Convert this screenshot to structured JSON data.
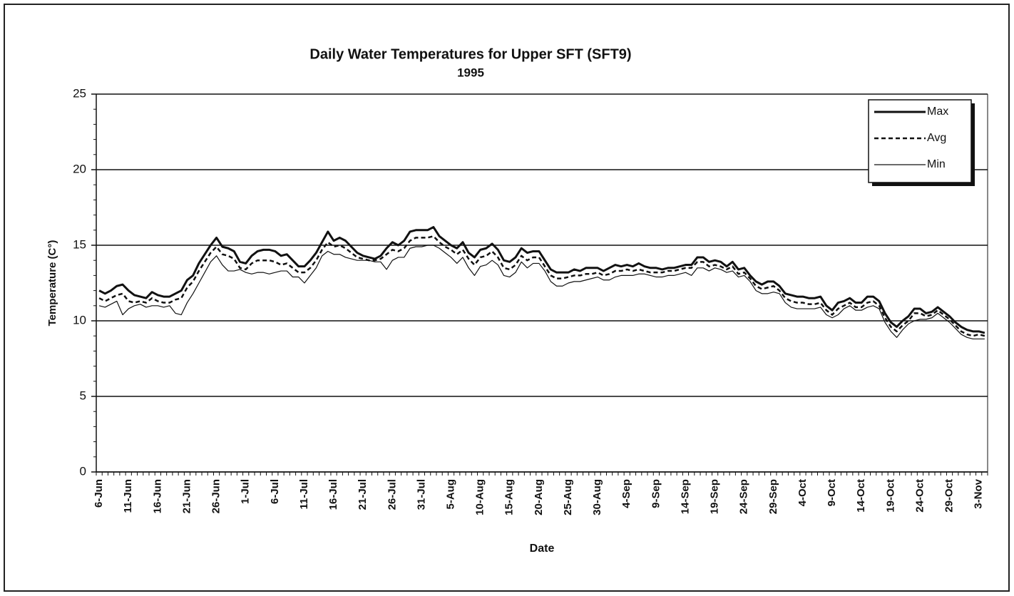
{
  "chart_data": {
    "type": "line",
    "title": "Daily Water Temperatures for Upper SFT (SFT9)",
    "subtitle": "1995",
    "x_label": "Date",
    "y_label": "Temperature (C°)",
    "ylim": [
      0,
      25
    ],
    "yticks": [
      0,
      5,
      10,
      15,
      20,
      25
    ],
    "grid": true,
    "legend": "top-right",
    "categories": [
      "6-Jun",
      null,
      null,
      null,
      null,
      "11-Jun",
      null,
      null,
      null,
      null,
      "16-Jun",
      null,
      null,
      null,
      null,
      "21-Jun",
      null,
      null,
      null,
      null,
      "26-Jun",
      null,
      null,
      null,
      null,
      "1-Jul",
      null,
      null,
      null,
      null,
      "6-Jul",
      null,
      null,
      null,
      null,
      "11-Jul",
      null,
      null,
      null,
      null,
      "16-Jul",
      null,
      null,
      null,
      null,
      "21-Jul",
      null,
      null,
      null,
      null,
      "26-Jul",
      null,
      null,
      null,
      null,
      "31-Jul",
      null,
      null,
      null,
      null,
      "5-Aug",
      null,
      null,
      null,
      null,
      "10-Aug",
      null,
      null,
      null,
      null,
      "15-Aug",
      null,
      null,
      null,
      null,
      "20-Aug",
      null,
      null,
      null,
      null,
      "25-Aug",
      null,
      null,
      null,
      null,
      "30-Aug",
      null,
      null,
      null,
      null,
      "4-Sep",
      null,
      null,
      null,
      null,
      "9-Sep",
      null,
      null,
      null,
      null,
      "14-Sep",
      null,
      null,
      null,
      null,
      "19-Sep",
      null,
      null,
      null,
      null,
      "24-Sep",
      null,
      null,
      null,
      null,
      "29-Sep",
      null,
      null,
      null,
      null,
      "4-Oct",
      null,
      null,
      null,
      null,
      "9-Oct",
      null,
      null,
      null,
      null,
      "14-Oct",
      null,
      null,
      null,
      null,
      "19-Oct",
      null,
      null,
      null,
      null,
      "24-Oct",
      null,
      null,
      null,
      null,
      "29-Oct",
      null,
      null,
      null,
      null,
      "3-Nov",
      null
    ],
    "series": [
      {
        "name": "Max",
        "color": "#111111",
        "width": 3,
        "dash": "none",
        "values": [
          12.0,
          11.8,
          12.0,
          12.3,
          12.4,
          12.0,
          11.7,
          11.6,
          11.5,
          11.9,
          11.7,
          11.6,
          11.6,
          11.8,
          12.0,
          12.7,
          13.0,
          13.8,
          14.4,
          15.0,
          15.5,
          14.9,
          14.8,
          14.6,
          13.9,
          13.8,
          14.3,
          14.6,
          14.7,
          14.7,
          14.6,
          14.3,
          14.4,
          14.0,
          13.6,
          13.6,
          14.0,
          14.5,
          15.2,
          15.9,
          15.3,
          15.5,
          15.3,
          14.9,
          14.5,
          14.3,
          14.2,
          14.1,
          14.3,
          14.8,
          15.2,
          15.0,
          15.3,
          15.9,
          16.0,
          16.0,
          16.0,
          16.2,
          15.6,
          15.3,
          15.0,
          14.8,
          15.2,
          14.5,
          14.2,
          14.7,
          14.8,
          15.1,
          14.7,
          14.0,
          13.9,
          14.2,
          14.8,
          14.5,
          14.6,
          14.6,
          14.0,
          13.4,
          13.2,
          13.2,
          13.2,
          13.4,
          13.3,
          13.5,
          13.5,
          13.5,
          13.3,
          13.5,
          13.7,
          13.6,
          13.7,
          13.6,
          13.8,
          13.6,
          13.5,
          13.5,
          13.4,
          13.5,
          13.5,
          13.6,
          13.7,
          13.7,
          14.2,
          14.2,
          13.9,
          14.0,
          13.9,
          13.6,
          13.9,
          13.4,
          13.5,
          13.0,
          12.6,
          12.4,
          12.6,
          12.6,
          12.3,
          11.8,
          11.7,
          11.6,
          11.6,
          11.5,
          11.5,
          11.6,
          11.0,
          10.7,
          11.2,
          11.3,
          11.5,
          11.2,
          11.2,
          11.6,
          11.6,
          11.3,
          10.5,
          9.9,
          9.6,
          10.0,
          10.3,
          10.8,
          10.8,
          10.5,
          10.6,
          10.9,
          10.6,
          10.3,
          9.9,
          9.6,
          9.4,
          9.3,
          9.3,
          9.2
        ]
      },
      {
        "name": "Avg",
        "color": "#111111",
        "width": 2.5,
        "dash": "6 4",
        "values": [
          11.5,
          11.3,
          11.5,
          11.7,
          11.8,
          11.3,
          11.2,
          11.3,
          11.2,
          11.5,
          11.3,
          11.2,
          11.2,
          11.4,
          11.5,
          12.2,
          12.6,
          13.3,
          13.9,
          14.5,
          14.9,
          14.4,
          14.3,
          14.1,
          13.5,
          13.4,
          13.8,
          14.0,
          14.0,
          14.0,
          13.9,
          13.7,
          13.8,
          13.5,
          13.2,
          13.2,
          13.5,
          14.0,
          14.7,
          15.2,
          14.9,
          15.0,
          14.8,
          14.5,
          14.2,
          14.1,
          14.0,
          14.0,
          14.1,
          14.4,
          14.7,
          14.6,
          14.8,
          15.3,
          15.5,
          15.5,
          15.5,
          15.6,
          15.2,
          14.9,
          14.7,
          14.4,
          14.7,
          14.1,
          13.7,
          14.2,
          14.3,
          14.6,
          14.2,
          13.5,
          13.4,
          13.7,
          14.3,
          14.0,
          14.2,
          14.2,
          13.6,
          13.0,
          12.8,
          12.8,
          12.9,
          13.0,
          13.0,
          13.1,
          13.1,
          13.2,
          13.0,
          13.1,
          13.3,
          13.3,
          13.4,
          13.3,
          13.4,
          13.3,
          13.2,
          13.2,
          13.2,
          13.3,
          13.3,
          13.4,
          13.5,
          13.5,
          13.9,
          13.9,
          13.6,
          13.7,
          13.6,
          13.4,
          13.6,
          13.1,
          13.2,
          12.8,
          12.3,
          12.1,
          12.2,
          12.3,
          12.0,
          11.5,
          11.3,
          11.2,
          11.2,
          11.1,
          11.1,
          11.2,
          10.7,
          10.4,
          10.8,
          11.0,
          11.2,
          10.9,
          10.9,
          11.2,
          11.3,
          11.0,
          10.2,
          9.6,
          9.3,
          9.7,
          10.0,
          10.5,
          10.5,
          10.3,
          10.4,
          10.7,
          10.4,
          10.1,
          9.7,
          9.3,
          9.1,
          9.0,
          9.1,
          9.0
        ]
      },
      {
        "name": "Min",
        "color": "#111111",
        "width": 1.2,
        "dash": "none",
        "values": [
          11.0,
          10.9,
          11.1,
          11.3,
          10.4,
          10.8,
          11.0,
          11.1,
          10.9,
          11.0,
          11.0,
          10.9,
          11.0,
          10.5,
          10.4,
          11.2,
          11.8,
          12.5,
          13.2,
          13.9,
          14.3,
          13.7,
          13.3,
          13.3,
          13.4,
          13.2,
          13.1,
          13.2,
          13.2,
          13.1,
          13.2,
          13.3,
          13.3,
          12.9,
          12.9,
          12.5,
          13.0,
          13.5,
          14.3,
          14.6,
          14.4,
          14.4,
          14.2,
          14.1,
          14.0,
          14.0,
          14.0,
          13.9,
          13.9,
          13.4,
          14.0,
          14.2,
          14.2,
          14.8,
          14.9,
          14.9,
          15.0,
          15.0,
          14.8,
          14.5,
          14.2,
          13.8,
          14.2,
          13.5,
          13.0,
          13.6,
          13.7,
          14.0,
          13.7,
          13.0,
          12.9,
          13.2,
          13.9,
          13.5,
          13.8,
          13.8,
          13.3,
          12.6,
          12.3,
          12.3,
          12.5,
          12.6,
          12.6,
          12.7,
          12.8,
          12.9,
          12.7,
          12.7,
          12.9,
          13.0,
          13.0,
          13.0,
          13.1,
          13.1,
          13.0,
          12.9,
          12.9,
          13.0,
          13.0,
          13.1,
          13.2,
          13.0,
          13.5,
          13.5,
          13.3,
          13.5,
          13.4,
          13.2,
          13.3,
          12.9,
          13.0,
          12.6,
          12.0,
          11.8,
          11.8,
          11.9,
          11.8,
          11.2,
          10.9,
          10.8,
          10.8,
          10.8,
          10.8,
          10.9,
          10.4,
          10.2,
          10.4,
          10.8,
          11.0,
          10.7,
          10.7,
          10.9,
          11.0,
          10.8,
          9.9,
          9.3,
          8.9,
          9.4,
          9.8,
          10.0,
          10.1,
          10.1,
          10.2,
          10.5,
          10.2,
          9.9,
          9.5,
          9.1,
          8.9,
          8.8,
          8.8,
          8.8
        ]
      }
    ]
  }
}
